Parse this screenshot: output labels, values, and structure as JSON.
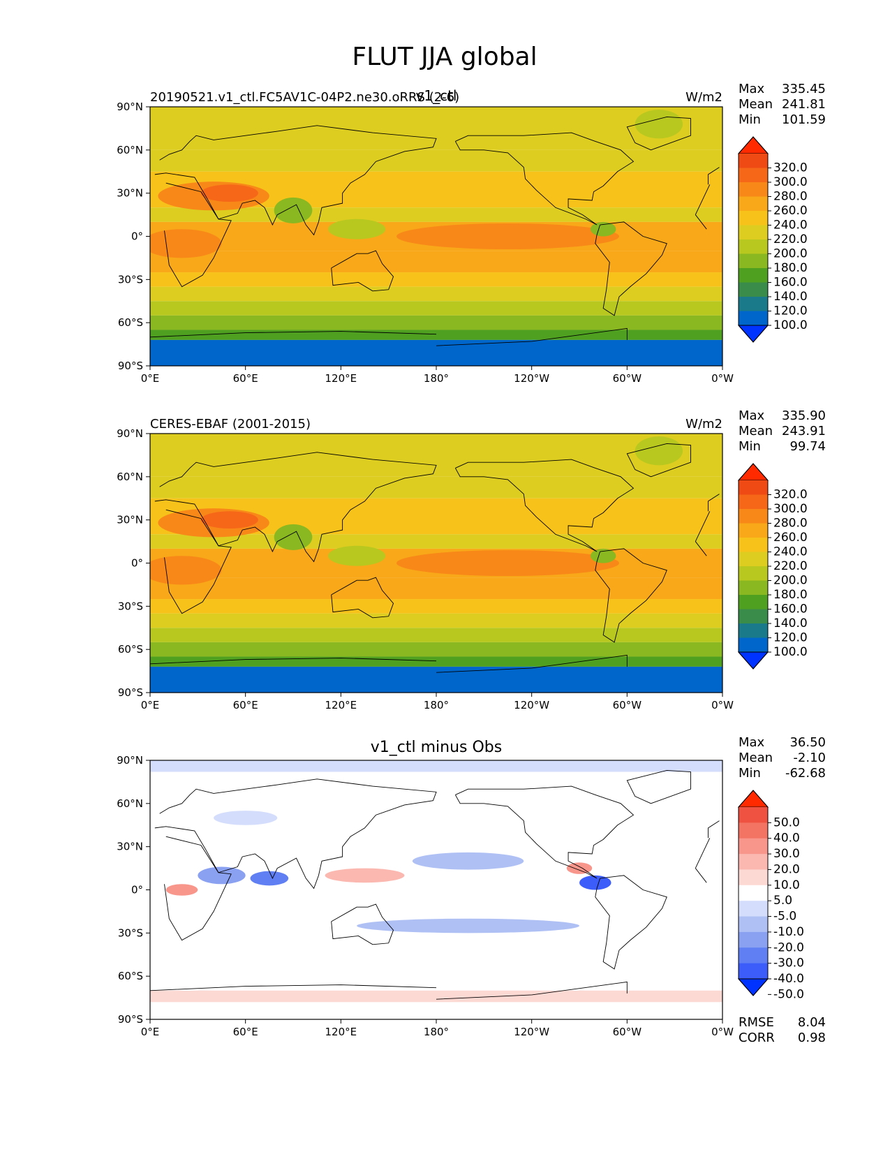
{
  "figure_title": "FLUT JJA global",
  "colors": {
    "main_scale": [
      "#0033ff",
      "#0066cc",
      "#1a7a8a",
      "#3a8c4a",
      "#4fa020",
      "#8ab820",
      "#b8c81f",
      "#dccd20",
      "#f7c21a",
      "#f8a818",
      "#f88818",
      "#f66818",
      "#f04a14",
      "#ff2a00"
    ],
    "diff_scale": [
      "#0033ff",
      "#3d5dfa",
      "#5f7ff2",
      "#8aa0f0",
      "#afc0f5",
      "#d4ddfb",
      "#ffffff",
      "#fdd9d4",
      "#fbb8b0",
      "#f8968c",
      "#f47464",
      "#ef5240",
      "#ff2a00"
    ]
  },
  "chart_data": [
    {
      "type": "heatmap",
      "panel": "test",
      "left_title": "20190521.v1_ctl.FC5AV1C-04P2.ne30.oRRS (2-6)",
      "center_title": "v1_ctl",
      "units": "W/m2",
      "stats": {
        "max_label": "Max",
        "max": "335.45",
        "mean_label": "Mean",
        "mean": "241.81",
        "min_label": "Min",
        "min": "101.59"
      },
      "colorbar_ticks": [
        "320.0",
        "300.0",
        "280.0",
        "260.0",
        "240.0",
        "220.0",
        "200.0",
        "180.0",
        "160.0",
        "140.0",
        "120.0",
        "100.0"
      ],
      "colorbar_levels": [
        100,
        120,
        140,
        160,
        180,
        200,
        220,
        240,
        260,
        280,
        300,
        320
      ],
      "xticks": [
        "0°E",
        "60°E",
        "120°E",
        "180°",
        "120°W",
        "60°W",
        "0°W"
      ],
      "yticks": [
        "90°N",
        "60°N",
        "30°N",
        "0°",
        "30°S",
        "60°S",
        "90°S"
      ],
      "xlim": [
        0,
        360
      ],
      "ylim": [
        -90,
        90
      ]
    },
    {
      "type": "heatmap",
      "panel": "reference",
      "left_title": "CERES-EBAF (2001-2015)",
      "center_title": "",
      "units": "W/m2",
      "stats": {
        "max_label": "Max",
        "max": "335.90",
        "mean_label": "Mean",
        "mean": "243.91",
        "min_label": "Min",
        "min": "99.74"
      },
      "colorbar_ticks": [
        "320.0",
        "300.0",
        "280.0",
        "260.0",
        "240.0",
        "220.0",
        "200.0",
        "180.0",
        "160.0",
        "140.0",
        "120.0",
        "100.0"
      ],
      "colorbar_levels": [
        100,
        120,
        140,
        160,
        180,
        200,
        220,
        240,
        260,
        280,
        300,
        320
      ],
      "xticks": [
        "0°E",
        "60°E",
        "120°E",
        "180°",
        "120°W",
        "60°W",
        "0°W"
      ],
      "yticks": [
        "90°N",
        "60°N",
        "30°N",
        "0°",
        "30°S",
        "60°S",
        "90°S"
      ],
      "xlim": [
        0,
        360
      ],
      "ylim": [
        -90,
        90
      ]
    },
    {
      "type": "heatmap",
      "panel": "difference",
      "left_title": "",
      "center_title": "v1_ctl minus Obs",
      "units": "",
      "stats": {
        "max_label": "Max",
        "max": "36.50",
        "mean_label": "Mean",
        "mean": "-2.10",
        "min_label": "Min",
        "min": "-62.68"
      },
      "rmse_label": "RMSE",
      "rmse": "8.04",
      "corr_label": "CORR",
      "corr": "0.98",
      "colorbar_ticks": [
        "50.0",
        "40.0",
        "30.0",
        "20.0",
        "10.0",
        "5.0",
        "-5.0",
        "-10.0",
        "-20.0",
        "-30.0",
        "-40.0",
        "-50.0"
      ],
      "colorbar_levels": [
        -50,
        -40,
        -30,
        -20,
        -10,
        -5,
        5,
        10,
        20,
        30,
        40,
        50
      ],
      "xticks": [
        "0°E",
        "60°E",
        "120°E",
        "180°",
        "120°W",
        "60°W",
        "0°W"
      ],
      "yticks": [
        "90°N",
        "60°N",
        "30°N",
        "0°",
        "30°S",
        "60°S",
        "90°S"
      ],
      "xlim": [
        0,
        360
      ],
      "ylim": [
        -90,
        90
      ]
    }
  ]
}
